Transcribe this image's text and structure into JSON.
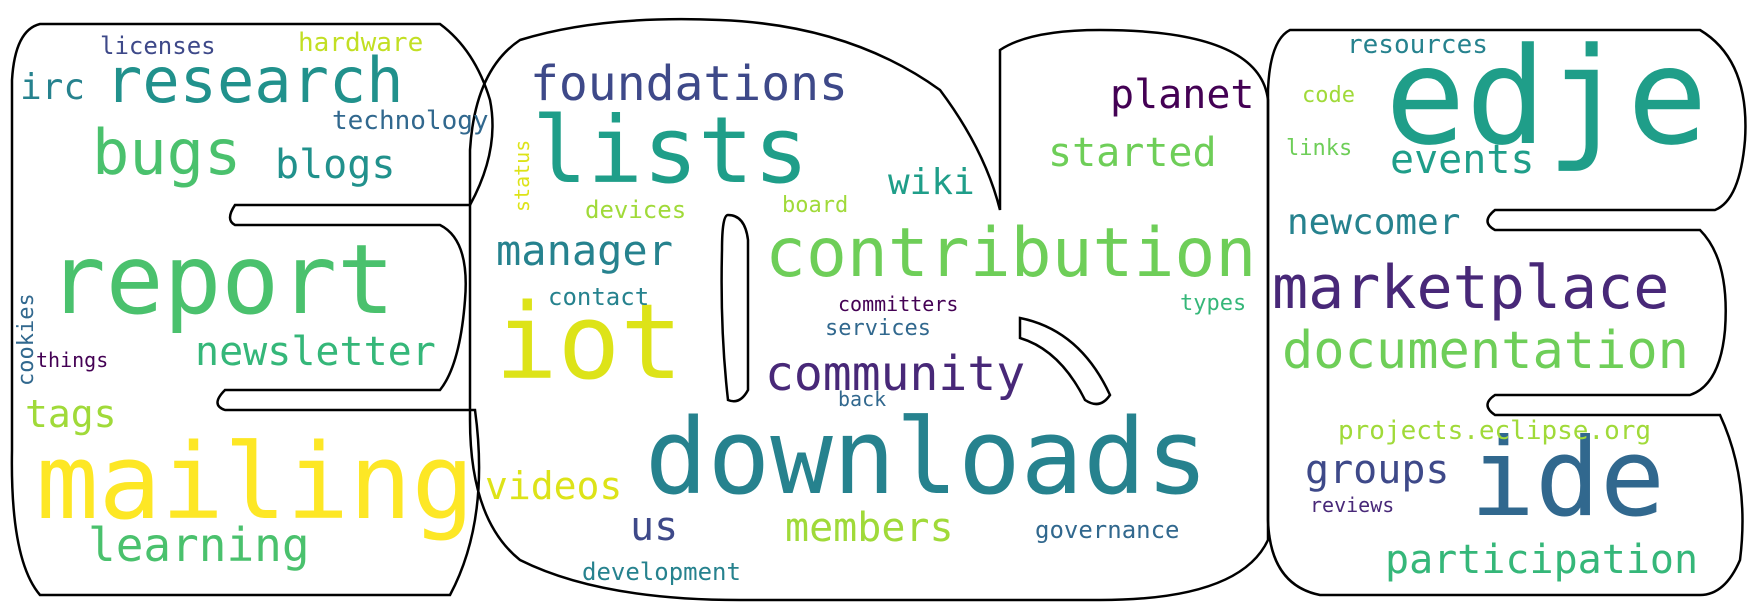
{
  "palette": {
    "yellow": "#fde725",
    "lime": "#b5de2b",
    "lightgreen": "#6ece58",
    "green": "#35b779",
    "teal": "#1f9e89",
    "cyan": "#26828e",
    "blue": "#31688e",
    "indigo": "#3e4989",
    "purple": "#482878",
    "darkpurple": "#440154"
  },
  "words": {
    "edje": "edje",
    "downloads": "downloads",
    "report": "report",
    "mailing": "mailing",
    "lists": "lists",
    "iot": "iot",
    "ide": "ide",
    "contribution": "contribution",
    "research": "research",
    "marketplace": "marketplace",
    "foundations": "foundations",
    "documentation": "documentation",
    "bugs": "bugs",
    "community": "community",
    "newsletter": "newsletter",
    "learning": "learning",
    "participation": "participation",
    "members": "members",
    "manager": "manager",
    "groups": "groups",
    "videos": "videos",
    "planet": "planet",
    "started": "started",
    "events": "events",
    "blogs": "blogs",
    "newcomer": "newcomer",
    "tags": "tags",
    "wiki": "wiki",
    "us": "us",
    "irc": "irc",
    "projects": "projects.eclipse.org",
    "technology": "technology",
    "hardware": "hardware",
    "licenses": "licenses",
    "resources": "resources",
    "devices": "devices",
    "contact": "contact",
    "development": "development",
    "governance": "governance",
    "services": "services",
    "committers": "committers",
    "types": "types",
    "code": "code",
    "links": "links",
    "board": "board",
    "back": "back",
    "reviews": "reviews",
    "things": "things",
    "status": "status",
    "cookies": "cookies"
  }
}
